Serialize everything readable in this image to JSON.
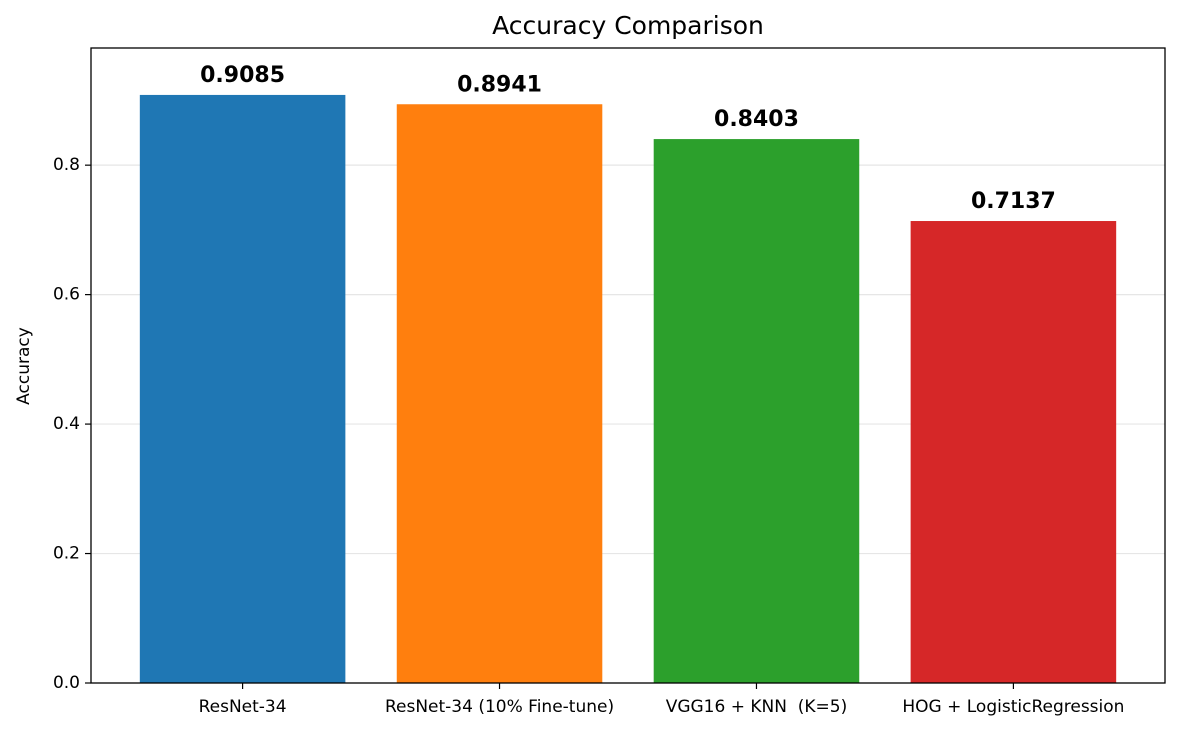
{
  "chart_data": {
    "type": "bar",
    "title": "Accuracy Comparison",
    "y_label": "Accuracy",
    "categories": [
      "ResNet-34",
      "ResNet-34 (10% Fine-tune)",
      "VGG16 + KNN  (K=5)",
      "HOG + LogisticRegression"
    ],
    "values": [
      0.9085,
      0.8941,
      0.8403,
      0.7137
    ],
    "colors": [
      "#1f77b4",
      "#ff7f0e",
      "#2ca02c",
      "#d62728"
    ],
    "ylim": [
      0,
      0.981
    ],
    "yticks": [
      {
        "value": 0,
        "label": "0.0"
      },
      0.2,
      0.4,
      0.6,
      0.8
    ],
    "grid": true
  }
}
